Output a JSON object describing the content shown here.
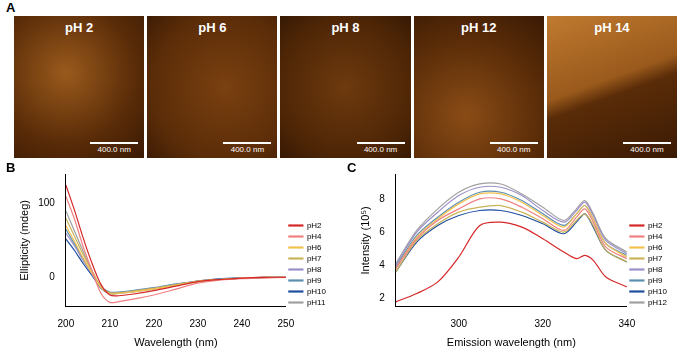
{
  "image_panel": {
    "label": "A",
    "images": [
      {
        "label": "pH 2",
        "scale_bar": "400.0 nm"
      },
      {
        "label": "pH 6",
        "scale_bar": "400.0 nm"
      },
      {
        "label": "pH 8",
        "scale_bar": "400.0 nm"
      },
      {
        "label": "pH 12",
        "scale_bar": "400.0 nm"
      },
      {
        "label": "pH 14",
        "scale_bar": "400.0 nm"
      }
    ]
  },
  "chart_data": [
    {
      "type": "line",
      "annotations": [
        "B"
      ],
      "x_label": "Wavelength (nm)",
      "y_label": "Ellipticity (mdeg)",
      "x": [
        200,
        202,
        204,
        206,
        208,
        210,
        212,
        215,
        220,
        225,
        230,
        235,
        240,
        245,
        250
      ],
      "xlim": [
        200,
        250
      ],
      "xticks": [
        200,
        210,
        220,
        230,
        240,
        250
      ],
      "ylim": [
        -40,
        140
      ],
      "yticks": [
        0,
        100
      ],
      "grid": false,
      "legend": "right",
      "series": [
        {
          "name": "pH2",
          "color": "#d62728",
          "values": [
            125,
            90,
            52,
            18,
            -10,
            -24,
            -25,
            -23,
            -18,
            -12,
            -6,
            -3,
            -1,
            0,
            0
          ]
        },
        {
          "name": "pH4",
          "color": "#f08080",
          "values": [
            110,
            78,
            40,
            8,
            -22,
            -34,
            -33,
            -30,
            -24,
            -16,
            -8,
            -4,
            -2,
            -1,
            0
          ]
        },
        {
          "name": "pH6",
          "color": "#f2c14e",
          "values": [
            70,
            48,
            25,
            5,
            -14,
            -22,
            -22,
            -20,
            -16,
            -11,
            -6,
            -3,
            -1,
            0,
            0
          ]
        },
        {
          "name": "pH7",
          "color": "#c9b458",
          "values": [
            80,
            55,
            30,
            8,
            -13,
            -21,
            -21,
            -19,
            -15,
            -10,
            -5,
            -3,
            -1,
            0,
            0
          ]
        },
        {
          "name": "pH8",
          "color": "#9a8fc9",
          "values": [
            60,
            42,
            22,
            4,
            -14,
            -21,
            -21,
            -19,
            -15,
            -10,
            -5,
            -3,
            -1,
            0,
            0
          ]
        },
        {
          "name": "pH9",
          "color": "#5b8fb0",
          "values": [
            65,
            45,
            24,
            5,
            -13,
            -20,
            -20,
            -18,
            -14,
            -9,
            -5,
            -2,
            -1,
            0,
            0
          ]
        },
        {
          "name": "pH10",
          "color": "#1f4fa0",
          "values": [
            52,
            36,
            18,
            2,
            -15,
            -22,
            -21,
            -19,
            -15,
            -10,
            -5,
            -2,
            -1,
            0,
            0
          ]
        },
        {
          "name": "pH11",
          "color": "#a0a0a0",
          "values": [
            90,
            62,
            34,
            8,
            -14,
            -22,
            -22,
            -20,
            -16,
            -11,
            -6,
            -3,
            -1,
            0,
            0
          ]
        }
      ]
    },
    {
      "type": "line",
      "annotations": [
        "C"
      ],
      "x_label": "Emission wavelength (nm)",
      "y_label": "Intensity (10⁵)",
      "x": [
        285,
        290,
        295,
        300,
        305,
        310,
        315,
        320,
        325,
        328,
        330,
        332,
        335,
        340
      ],
      "xlim": [
        285,
        340
      ],
      "xticks": [
        300,
        320,
        340
      ],
      "ylim": [
        1.5,
        9.5
      ],
      "yticks": [
        2,
        4,
        6,
        8
      ],
      "grid": false,
      "legend": "right",
      "series": [
        {
          "name": "pH2",
          "color": "#d62728",
          "values": [
            1.8,
            2.3,
            3.0,
            4.5,
            6.4,
            6.6,
            6.3,
            5.6,
            4.8,
            4.4,
            4.6,
            4.3,
            3.3,
            2.7
          ]
        },
        {
          "name": "pH4",
          "color": "#f08080",
          "values": [
            3.8,
            5.6,
            6.7,
            7.4,
            8.0,
            8.0,
            7.5,
            6.8,
            6.1,
            6.9,
            7.4,
            6.6,
            5.1,
            4.4
          ]
        },
        {
          "name": "pH6",
          "color": "#f2c14e",
          "values": [
            3.8,
            5.7,
            6.8,
            7.7,
            8.3,
            8.3,
            7.8,
            7.0,
            6.3,
            7.1,
            7.6,
            6.8,
            5.3,
            4.5
          ]
        },
        {
          "name": "pH7",
          "color": "#c9b458",
          "values": [
            3.6,
            5.5,
            6.5,
            7.2,
            7.5,
            7.6,
            7.2,
            6.6,
            6.0,
            6.7,
            7.1,
            6.4,
            4.9,
            4.2
          ]
        },
        {
          "name": "pH8",
          "color": "#9a8fc9",
          "values": [
            4.0,
            6.0,
            7.2,
            8.2,
            8.7,
            8.7,
            8.2,
            7.3,
            6.6,
            7.3,
            7.8,
            7.0,
            5.5,
            4.7
          ]
        },
        {
          "name": "pH9",
          "color": "#5b8fb0",
          "values": [
            3.9,
            5.8,
            6.9,
            7.8,
            8.4,
            8.4,
            7.9,
            7.1,
            6.4,
            7.1,
            7.6,
            6.8,
            5.3,
            4.6
          ]
        },
        {
          "name": "pH10",
          "color": "#1f4fa0",
          "values": [
            3.6,
            5.4,
            6.4,
            7.0,
            7.3,
            7.3,
            7.0,
            6.5,
            5.9,
            6.6,
            7.1,
            6.3,
            4.9,
            4.2
          ]
        },
        {
          "name": "pH12",
          "color": "#a0a0a0",
          "values": [
            4.1,
            6.1,
            7.4,
            8.4,
            8.9,
            8.9,
            8.3,
            7.5,
            6.7,
            7.4,
            7.9,
            7.1,
            5.6,
            4.8
          ]
        }
      ]
    }
  ]
}
